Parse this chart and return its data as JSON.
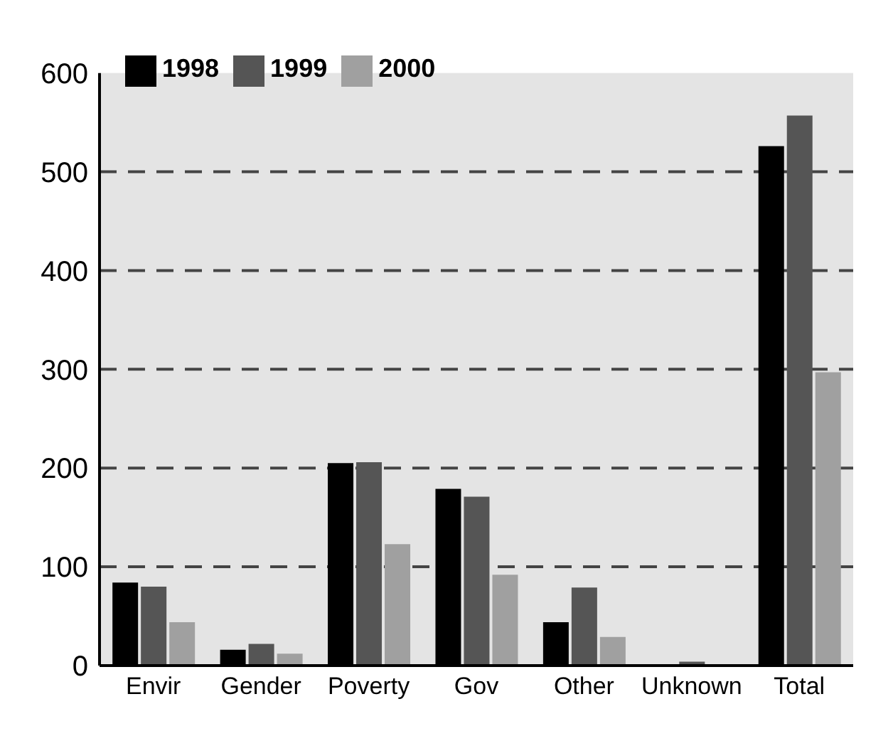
{
  "chart_data": {
    "type": "bar",
    "categories": [
      "Envir",
      "Gender",
      "Poverty",
      "Gov",
      "Other",
      "Unknown",
      "Total"
    ],
    "series": [
      {
        "name": "1998",
        "color": "#000000",
        "values": [
          84,
          16,
          205,
          179,
          44,
          null,
          526
        ]
      },
      {
        "name": "1999",
        "color": "#555555",
        "values": [
          80,
          22,
          206,
          171,
          79,
          4,
          557
        ]
      },
      {
        "name": "2000",
        "color": "#a0a0a0",
        "values": [
          44,
          12,
          123,
          92,
          29,
          null,
          297
        ]
      }
    ],
    "ylim": [
      0,
      600
    ],
    "yticks": [
      0,
      100,
      200,
      300,
      400,
      500,
      600
    ],
    "grid": "y",
    "legend": "top left"
  }
}
